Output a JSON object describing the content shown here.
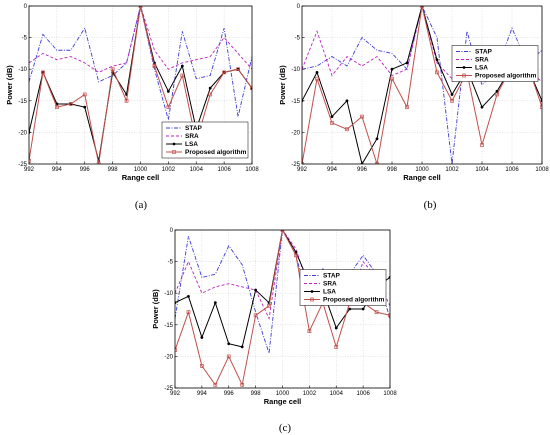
{
  "chart_data": [
    {
      "type": "line",
      "panel_label": "(a)",
      "xlabel": "Range cell",
      "ylabel": "Power (dB)",
      "xlim": [
        992,
        1008
      ],
      "ylim": [
        -25,
        0
      ],
      "xticks": [
        992,
        994,
        996,
        998,
        1000,
        1002,
        1004,
        1006,
        1008
      ],
      "yticks": [
        0,
        -5,
        -10,
        -15,
        -20,
        -25
      ],
      "grid": true,
      "legend_position": "bottom-right",
      "x": [
        992,
        993,
        994,
        995,
        996,
        997,
        998,
        999,
        1000,
        1001,
        1002,
        1003,
        1004,
        1005,
        1006,
        1007,
        1008
      ],
      "series": [
        {
          "name": "STAP",
          "color": "#3b3bd6",
          "style": "dashdot",
          "marker": "none",
          "values": [
            -12,
            -4.5,
            -7,
            -7,
            -3.5,
            -12,
            -11,
            -9,
            0,
            -10,
            -18,
            -4,
            -11.5,
            -11,
            -3.5,
            -17.5,
            -8
          ]
        },
        {
          "name": "SRA",
          "color": "#c020c0",
          "style": "dashed",
          "marker": "none",
          "values": [
            -9,
            -7.5,
            -8.5,
            -8,
            -9,
            -10.5,
            -9.5,
            -9,
            0,
            -7,
            -10,
            -9,
            -8.5,
            -8,
            -5,
            -7.5,
            -10
          ]
        },
        {
          "name": "LSA",
          "color": "#000000",
          "style": "solid",
          "marker": "dot",
          "values": [
            -20,
            -10.5,
            -15.5,
            -15.5,
            -16,
            -24.5,
            -10.5,
            -14,
            0,
            -9,
            -13.5,
            -9.5,
            -19.5,
            -13,
            -10.5,
            -10,
            -13
          ]
        },
        {
          "name": "Proposed algorithm",
          "color": "#c0504d",
          "style": "solid",
          "marker": "square",
          "values": [
            -24.5,
            -10.5,
            -16,
            -15.5,
            -14,
            -25,
            -10,
            -15,
            0,
            -9.5,
            -16,
            -11,
            -21.5,
            -14,
            -10.5,
            -10,
            -13
          ]
        }
      ]
    },
    {
      "type": "line",
      "panel_label": "(b)",
      "xlabel": "Range cell",
      "ylabel": "Power (dB)",
      "xlim": [
        992,
        1008
      ],
      "ylim": [
        -25,
        0
      ],
      "xticks": [
        992,
        994,
        996,
        998,
        1000,
        1002,
        1004,
        1006,
        1008
      ],
      "yticks": [
        0,
        -5,
        -10,
        -15,
        -20,
        -25
      ],
      "grid": true,
      "legend_position": "top-right",
      "x": [
        992,
        993,
        994,
        995,
        996,
        997,
        998,
        999,
        1000,
        1001,
        1002,
        1003,
        1004,
        1005,
        1006,
        1007,
        1008
      ],
      "series": [
        {
          "name": "STAP",
          "color": "#3b3bd6",
          "style": "dashdot",
          "marker": "none",
          "values": [
            -10,
            -9.5,
            -8,
            -9.5,
            -5,
            -7,
            -7.5,
            -10,
            0,
            -5,
            -25,
            -4,
            -12.5,
            -10,
            -3.5,
            -9,
            -7
          ]
        },
        {
          "name": "SRA",
          "color": "#c020c0",
          "style": "dashed",
          "marker": "none",
          "values": [
            -10,
            -4,
            -11,
            -8,
            -9.5,
            -8,
            -11,
            -10,
            0,
            -9,
            -11.5,
            -10,
            -9,
            -11,
            -8,
            -10,
            -12
          ]
        },
        {
          "name": "LSA",
          "color": "#000000",
          "style": "solid",
          "marker": "dot",
          "values": [
            -15,
            -10.5,
            -17.5,
            -15,
            -25,
            -21,
            -10,
            -9,
            0,
            -8.5,
            -14,
            -10,
            -16,
            -13.5,
            -9.5,
            -9.5,
            -15
          ]
        },
        {
          "name": "Proposed algorithm",
          "color": "#c0504d",
          "style": "solid",
          "marker": "square",
          "values": [
            -25,
            -11.5,
            -18.5,
            -19.5,
            -17.5,
            -25,
            -11.5,
            -16,
            0,
            -10.5,
            -15,
            -10.5,
            -22,
            -14,
            -9.5,
            -9,
            -16
          ]
        }
      ]
    },
    {
      "type": "line",
      "panel_label": "(c)",
      "xlabel": "Range cell",
      "ylabel": "Power (dB)",
      "xlim": [
        992,
        1008
      ],
      "ylim": [
        -25,
        0
      ],
      "xticks": [
        992,
        994,
        996,
        998,
        1000,
        1002,
        1004,
        1006,
        1008
      ],
      "yticks": [
        0,
        -5,
        -10,
        -15,
        -20,
        -25
      ],
      "grid": true,
      "legend_position": "top-right",
      "x": [
        992,
        993,
        994,
        995,
        996,
        997,
        998,
        999,
        1000,
        1001,
        1002,
        1003,
        1004,
        1005,
        1006,
        1007,
        1008
      ],
      "series": [
        {
          "name": "STAP",
          "color": "#3b3bd6",
          "style": "dashdot",
          "marker": "none",
          "values": [
            -14,
            -1,
            -7.5,
            -7,
            -2.5,
            -5.5,
            -13,
            -19.5,
            0,
            -4,
            -12,
            -6,
            -10.5,
            -7,
            -4,
            -7,
            -14
          ]
        },
        {
          "name": "SRA",
          "color": "#c020c0",
          "style": "dashed",
          "marker": "none",
          "values": [
            -10,
            -5,
            -10,
            -9,
            -8.5,
            -9,
            -9.5,
            -14,
            0,
            -3,
            -9.5,
            -12,
            -9.5,
            -11,
            -5,
            -7.5,
            -12
          ]
        },
        {
          "name": "LSA",
          "color": "#000000",
          "style": "solid",
          "marker": "dot",
          "values": [
            -11.5,
            -10.5,
            -17,
            -11.5,
            -18,
            -18.5,
            -9.5,
            -11.5,
            0,
            -3.5,
            -8.5,
            -9.5,
            -15.5,
            -12.5,
            -12.5,
            -9,
            -7.5
          ]
        },
        {
          "name": "Proposed algorithm",
          "color": "#c0504d",
          "style": "solid",
          "marker": "square",
          "values": [
            -19,
            -13,
            -21.5,
            -24.5,
            -20,
            -24.5,
            -13.5,
            -12,
            0,
            -4,
            -16,
            -11.5,
            -18.5,
            -11.5,
            -11.5,
            -13,
            -13.5
          ]
        }
      ]
    }
  ]
}
